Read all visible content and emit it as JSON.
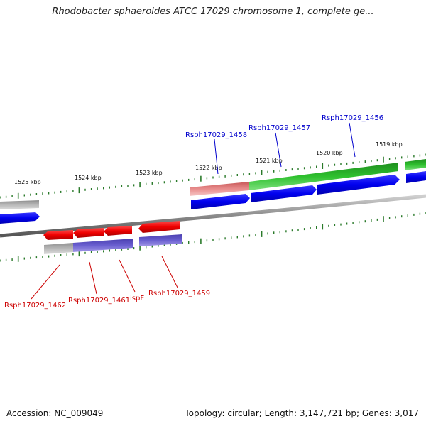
{
  "title": "Rhodobacter sphaeroides ATCC 17029 chromosome 1, complete ge...",
  "footer": {
    "accession": "Accession: NC_009049",
    "stats": "Topology: circular; Length: 3,147,721 bp; Genes: 3,017"
  },
  "scale_labels": [
    "1525 kbp",
    "1524 kbp",
    "1523 kbp",
    "1522 kbp",
    "1521 kbp",
    "1520 kbp",
    "1519 kbp"
  ],
  "gene_labels": {
    "forward": [
      "Rsph17029_1458",
      "Rsph17029_1457",
      "Rsph17029_1456"
    ],
    "reverse": [
      "Rsph17029_1462",
      "Rsph17029_1461",
      "ispF",
      "Rsph17029_1459"
    ]
  },
  "colors": {
    "forward_gene": "#0000ff",
    "forward_label": "#0000cc",
    "reverse_gene": "#ff0000",
    "reverse_label": "#cc0000",
    "cds_forward_track": "#33cc33",
    "cds_reverse_track": "#6666cc",
    "pseudo_track": "#bbbbbb",
    "rna_track": "#e88888",
    "backbone": "#777777",
    "ticks": "#2a7a2a"
  }
}
